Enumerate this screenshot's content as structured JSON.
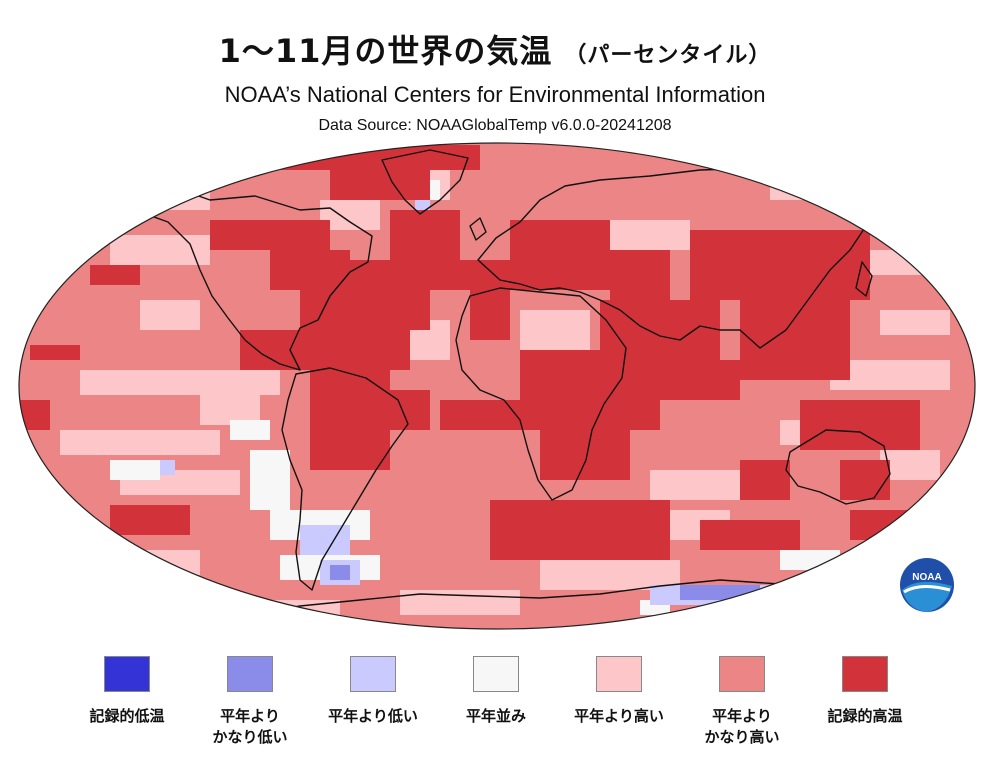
{
  "title": {
    "main": "1〜11月の世界の気温",
    "suffix": "（パーセンタイル）",
    "organization": "NOAA’s National Centers for Environmental Information",
    "source": "Data Source: NOAAGlobalTemp v6.0.0-20241208"
  },
  "logo": {
    "text": "NOAA",
    "icon": "noaa-logo"
  },
  "legend": [
    {
      "label": "記録的低温",
      "color": "#3434d6"
    },
    {
      "label": "平年より\nかなり低い",
      "color": "#8b8bea"
    },
    {
      "label": "平年より低い",
      "color": "#cacaff"
    },
    {
      "label": "平年並み",
      "color": "#f7f7f7"
    },
    {
      "label": "平年より高い",
      "color": "#fdc6c8"
    },
    {
      "label": "平年より\nかなり高い",
      "color": "#ec8585"
    },
    {
      "label": "記録的高温",
      "color": "#d2323a"
    }
  ],
  "map_colors": {
    "record_warm": "#d2323a",
    "much_warmer": "#ec8585",
    "warmer": "#fdc6c8",
    "near_average": "#f7f7f7",
    "cooler": "#cacaff",
    "much_cooler": "#8b8bea",
    "coastline": "#111111"
  }
}
